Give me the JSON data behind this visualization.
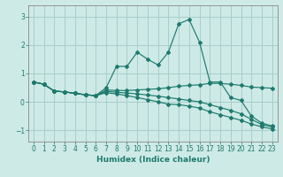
{
  "xlabel": "Humidex (Indice chaleur)",
  "ylabel": "",
  "background_color": "#ceeae6",
  "grid_color": "#a8cec9",
  "line_color": "#1e7a6e",
  "xlim": [
    -0.5,
    23.5
  ],
  "ylim": [
    -1.4,
    3.4
  ],
  "xticks": [
    0,
    1,
    2,
    3,
    4,
    5,
    6,
    7,
    8,
    9,
    10,
    11,
    12,
    13,
    14,
    15,
    16,
    17,
    18,
    19,
    20,
    21,
    22,
    23
  ],
  "yticks": [
    -1,
    0,
    1,
    2,
    3
  ],
  "series": [
    {
      "x": [
        0,
        1,
        2,
        3,
        4,
        5,
        6,
        7,
        8,
        9,
        10,
        11,
        12,
        13,
        14,
        15,
        16,
        17,
        18,
        19,
        20,
        21,
        22,
        23
      ],
      "y": [
        0.7,
        0.62,
        0.38,
        0.35,
        0.3,
        0.25,
        0.22,
        0.5,
        1.25,
        1.25,
        1.75,
        1.5,
        1.3,
        1.75,
        2.75,
        2.9,
        2.1,
        0.7,
        0.7,
        0.15,
        0.05,
        -0.5,
        -0.75,
        -0.85
      ]
    },
    {
      "x": [
        0,
        1,
        2,
        3,
        4,
        5,
        6,
        7,
        8,
        9,
        10,
        11,
        12,
        13,
        14,
        15,
        16,
        17,
        18,
        19,
        20,
        21,
        22,
        23
      ],
      "y": [
        0.7,
        0.62,
        0.38,
        0.35,
        0.3,
        0.25,
        0.22,
        0.42,
        0.4,
        0.4,
        0.42,
        0.44,
        0.46,
        0.5,
        0.55,
        0.58,
        0.6,
        0.65,
        0.65,
        0.62,
        0.58,
        0.52,
        0.5,
        0.48
      ]
    },
    {
      "x": [
        0,
        1,
        2,
        3,
        4,
        5,
        6,
        7,
        8,
        9,
        10,
        11,
        12,
        13,
        14,
        15,
        16,
        17,
        18,
        19,
        20,
        21,
        22,
        23
      ],
      "y": [
        0.7,
        0.62,
        0.38,
        0.35,
        0.3,
        0.25,
        0.22,
        0.32,
        0.28,
        0.22,
        0.15,
        0.08,
        0.0,
        -0.08,
        -0.1,
        -0.15,
        -0.22,
        -0.35,
        -0.45,
        -0.55,
        -0.65,
        -0.78,
        -0.88,
        -0.95
      ]
    },
    {
      "x": [
        0,
        1,
        2,
        3,
        4,
        5,
        6,
        7,
        8,
        9,
        10,
        11,
        12,
        13,
        14,
        15,
        16,
        17,
        18,
        19,
        20,
        21,
        22,
        23
      ],
      "y": [
        0.7,
        0.62,
        0.38,
        0.35,
        0.3,
        0.25,
        0.22,
        0.37,
        0.34,
        0.31,
        0.28,
        0.24,
        0.2,
        0.15,
        0.1,
        0.05,
        0.0,
        -0.1,
        -0.2,
        -0.3,
        -0.42,
        -0.62,
        -0.8,
        -0.88
      ]
    }
  ]
}
